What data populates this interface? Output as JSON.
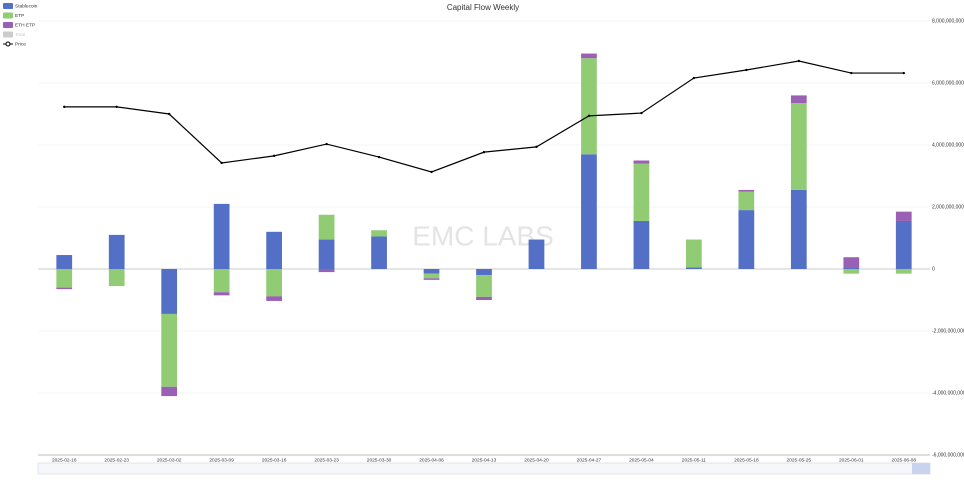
{
  "chart_data": {
    "type": "bar",
    "title": "Capital Flow Weekly",
    "watermark": "EMC LABS",
    "categories": [
      "2025-02-16",
      "2025-02-23",
      "2025-03-02",
      "2025-03-09",
      "2025-03-16",
      "2025-03-23",
      "2025-03-30",
      "2025-04-06",
      "2025-04-13",
      "2025-04-20",
      "2025-04-27",
      "2025-05-04",
      "2025-05-11",
      "2025-05-18",
      "2025-05-25",
      "2025-06-01",
      "2025-06-08"
    ],
    "series": [
      {
        "name": "Stablecoin",
        "color": "#5470c6",
        "type": "bar",
        "values": [
          450000000,
          1100000000,
          -1450000000,
          2100000000,
          1200000000,
          950000000,
          1050000000,
          -150000000,
          -200000000,
          950000000,
          3700000000,
          1550000000,
          50000000,
          1900000000,
          2550000000,
          50000000,
          1550000000
        ]
      },
      {
        "name": "ETP",
        "color": "#91cc75",
        "type": "bar",
        "values": [
          -600000000,
          -550000000,
          -2350000000,
          -750000000,
          -880000000,
          800000000,
          200000000,
          -150000000,
          -700000000,
          0,
          3100000000,
          1850000000,
          900000000,
          600000000,
          2800000000,
          -150000000,
          -150000000
        ]
      },
      {
        "name": "ETH ETP",
        "color": "#9a60b4",
        "type": "bar",
        "values": [
          -50000000,
          0,
          -300000000,
          -100000000,
          -150000000,
          -100000000,
          0,
          -50000000,
          -100000000,
          0,
          150000000,
          100000000,
          0,
          50000000,
          250000000,
          330000000,
          300000000
        ]
      },
      {
        "name": "Total",
        "color": "#cccccc",
        "type": "bar",
        "inactive": true,
        "values": null
      },
      {
        "name": "Price",
        "color": "#000000",
        "type": "line",
        "values": [
          5230000000,
          5230000000,
          5000000000,
          3420000000,
          3650000000,
          4030000000,
          3610000000,
          3130000000,
          3770000000,
          3940000000,
          4940000000,
          5030000000,
          6160000000,
          6420000000,
          6710000000,
          6320000000,
          6320000000
        ]
      }
    ],
    "ylim": [
      -6000000000,
      8000000000
    ],
    "yticks": [
      {
        "value": -6000000000,
        "label": "-6,000,000,000"
      },
      {
        "value": -4000000000,
        "label": "-4,000,000,000"
      },
      {
        "value": -2000000000,
        "label": "-2,000,000,000"
      },
      0,
      {
        "value": 2000000000,
        "label": "2,000,000,000"
      },
      {
        "value": 4000000000,
        "label": "4,000,000,000"
      },
      {
        "value": 6000000000,
        "label": "6,000,000,000"
      },
      {
        "value": 8000000000,
        "label": "8,000,000,000"
      }
    ],
    "grid": true,
    "stacked": true,
    "legend": "top-left"
  }
}
